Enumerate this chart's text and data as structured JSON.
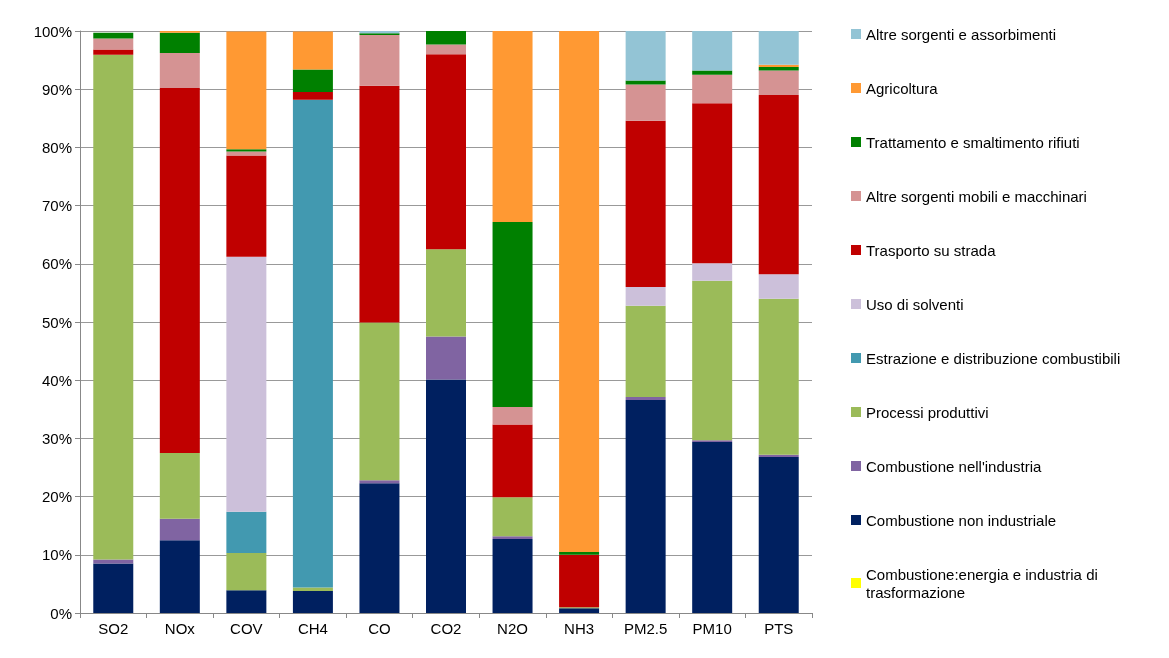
{
  "chart_data": {
    "type": "bar",
    "stacked": true,
    "categories": [
      "SO2",
      "NOx",
      "COV",
      "CH4",
      "CO",
      "CO2",
      "N2O",
      "NH3",
      "PM2.5",
      "PM10",
      "PTS"
    ],
    "series": [
      {
        "name": "Combustione:energia e industria di trasformazione",
        "color": "#ffff00",
        "values": [
          0,
          0,
          0,
          0,
          0,
          0,
          0,
          0,
          0,
          0,
          0
        ]
      },
      {
        "name": "Combustione non industriale",
        "color": "#002060",
        "values": [
          8.5,
          12.5,
          3.9,
          3.8,
          22.3,
          40.1,
          12.7,
          0.8,
          36.6,
          29.4,
          26.8
        ]
      },
      {
        "name": "Combustione nell'industria",
        "color": "#8064a2",
        "values": [
          0.7,
          3.7,
          null,
          0,
          0.5,
          7.4,
          0.5,
          0,
          0.5,
          0.3,
          0.4
        ]
      },
      {
        "name": "Processi produttivi",
        "color": "#9bbb59",
        "values": [
          86.7,
          11.3,
          6.4,
          0.6,
          27.1,
          15.0,
          6.7,
          0.2,
          15.7,
          27.4,
          26.8
        ]
      },
      {
        "name": "Estrazione e distribuzione combustibili",
        "color": "#4299b0",
        "values": [
          0,
          0,
          7.1,
          83.8,
          0,
          0,
          0,
          0,
          0,
          0,
          0
        ]
      },
      {
        "name": "Uso di solventi",
        "color": "#ccc0da",
        "values": [
          null,
          0,
          43.8,
          0,
          0,
          0,
          0,
          0,
          3.2,
          3.0,
          4.2
        ]
      },
      {
        "name": "Trasporto su strada",
        "color": "#c00000",
        "values": [
          0.9,
          62.7,
          17.4,
          1.3,
          40.7,
          33.5,
          12.5,
          9.0,
          28.6,
          27.5,
          30.8
        ]
      },
      {
        "name": "Altre sorgenti mobili e macchinari",
        "color": "#d59393",
        "values": [
          1.9,
          6.0,
          0.7,
          0,
          8.7,
          1.7,
          3.0,
          0,
          6.2,
          4.9,
          4.2
        ]
      },
      {
        "name": "Trattamento e smaltimento rifiuti",
        "color": "#008000",
        "values": [
          1.0,
          3.5,
          0.4,
          3.9,
          0.3,
          2.3,
          31.8,
          0.5,
          0.7,
          0.7,
          0.6
        ]
      },
      {
        "name": "Agricoltura",
        "color": "#ff9933",
        "values": [
          0,
          0.3,
          20.2,
          6.5,
          0,
          0,
          32.8,
          89.5,
          0,
          0,
          0.4
        ]
      },
      {
        "name": "Altre sorgenti e assorbimenti",
        "color": "#93c4d5",
        "values": [
          null,
          0,
          0,
          null,
          0.4,
          0,
          0,
          0,
          8.5,
          6.8,
          5.8
        ]
      }
    ],
    "ylim": [
      0,
      100
    ],
    "yticks": [
      {
        "value": 0,
        "label": "0%"
      },
      {
        "value": 10,
        "label": "10%"
      },
      {
        "value": 20,
        "label": "20%"
      },
      {
        "value": 30,
        "label": "30%"
      },
      {
        "value": 40,
        "label": "40%"
      },
      {
        "value": 50,
        "label": "50%"
      },
      {
        "value": 60,
        "label": "60%"
      },
      {
        "value": 70,
        "label": "70%"
      },
      {
        "value": 80,
        "label": "80%"
      },
      {
        "value": 90,
        "label": "90%"
      },
      {
        "value": 100,
        "label": "100%"
      }
    ],
    "grid": "y",
    "legend": "right"
  }
}
